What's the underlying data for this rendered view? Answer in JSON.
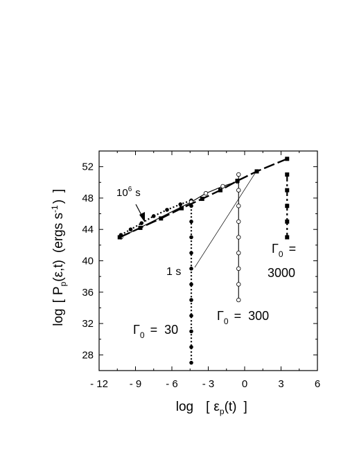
{
  "chart_data": {
    "type": "scatter",
    "xlim": [
      -12,
      6
    ],
    "ylim": [
      26,
      54
    ],
    "xticks": [
      -12,
      -9,
      -6,
      -3,
      0,
      3,
      6
    ],
    "yticks": [
      28,
      32,
      36,
      40,
      44,
      48,
      52
    ],
    "xlabel_parts": [
      "log",
      "[",
      "ε",
      "p",
      "(t)",
      "]"
    ],
    "ylabel_parts": [
      "log",
      "[",
      "P",
      "p",
      "(ε,t)",
      "(ergs s",
      "-1",
      ")",
      "]"
    ],
    "grid": false,
    "series": [
      {
        "marker": "filled-circle",
        "line": "dotted",
        "color": "#000000",
        "x": [
          -10.2,
          -9.4,
          -8.5,
          -7.5,
          -6.4,
          -5.3,
          -4.4
        ],
        "y": [
          43.3,
          44.0,
          44.8,
          45.7,
          46.5,
          47.2,
          47.7
        ]
      },
      {
        "marker": "filled-circle",
        "line": "dotted",
        "color": "#000000",
        "x": [
          -4.4,
          -4.4,
          -4.4,
          -4.4,
          -4.4,
          -4.4,
          -4.4,
          -4.4,
          -4.4,
          -4.4,
          -4.4
        ],
        "y": [
          47.0,
          45.0,
          43.0,
          41.0,
          39.0,
          37.0,
          35.0,
          33.0,
          31.0,
          29.0,
          27.0
        ]
      },
      {
        "marker": "open-circle",
        "line": "solid",
        "color": "#000000",
        "x": [
          -10.2,
          -4.4,
          -3.2,
          -1.8,
          -0.6
        ],
        "y": [
          43.0,
          47.5,
          48.6,
          49.5,
          50.1
        ]
      },
      {
        "marker": "open-circle",
        "line": "solid",
        "color": "#000000",
        "x": [
          -0.5,
          -0.5,
          -0.5,
          -0.5,
          -0.5,
          -0.5,
          -0.5,
          -0.5,
          -0.5
        ],
        "y": [
          49.0,
          47.0,
          45.0,
          43.0,
          41.0,
          39.0,
          37.0,
          35.0,
          51.0
        ]
      },
      {
        "marker": "filled-square",
        "line": "long-dash",
        "color": "#000000",
        "x": [
          -10.3,
          -8.6,
          -6.9,
          -5.2,
          -3.5,
          -2.0,
          -0.6,
          1.0,
          3.5
        ],
        "y": [
          43.0,
          44.2,
          45.4,
          46.7,
          47.9,
          49.0,
          50.2,
          51.4,
          53.0
        ]
      },
      {
        "marker": "filled-square",
        "line": "dash-dot",
        "color": "#000000",
        "x": [
          3.5,
          3.5,
          3.5,
          3.5,
          3.5
        ],
        "y": [
          51.0,
          49.0,
          47.0,
          45.0,
          43.0
        ]
      }
    ],
    "annotations": {
      "t_late": {
        "base": "10",
        "exp": "6",
        "unit": "s"
      },
      "t_early": "1 s",
      "gamma30": {
        "symbol": "Γ",
        "sub": "0",
        "text": "=  30"
      },
      "gamma300": {
        "symbol": "Γ",
        "sub": "0",
        "text": "=  300"
      },
      "gamma3000": {
        "symbol": "Γ",
        "sub": "0",
        "text": "=",
        "value": "3000"
      }
    }
  }
}
